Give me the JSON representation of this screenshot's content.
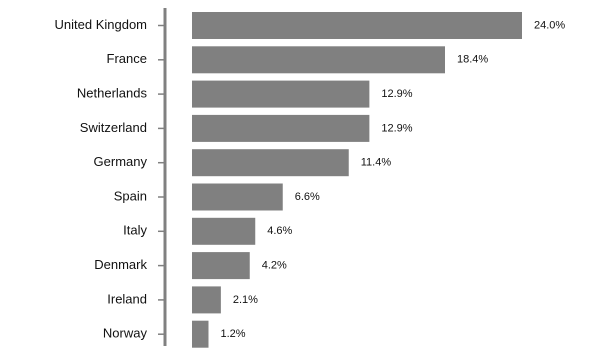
{
  "chart_data": {
    "type": "bar",
    "orientation": "horizontal",
    "categories": [
      "United Kingdom",
      "France",
      "Netherlands",
      "Switzerland",
      "Germany",
      "Spain",
      "Italy",
      "Denmark",
      "Ireland",
      "Norway"
    ],
    "values": [
      24.0,
      18.4,
      12.9,
      12.9,
      11.4,
      6.6,
      4.6,
      4.2,
      2.1,
      1.2
    ],
    "value_labels": [
      "24.0%",
      "18.4%",
      "12.9%",
      "12.9%",
      "11.4%",
      "6.6%",
      "4.6%",
      "4.2%",
      "2.1%",
      "1.2%"
    ],
    "title": "",
    "xlabel": "",
    "ylabel": "",
    "xlim": [
      0,
      24.0
    ],
    "grid": false,
    "legend": "none",
    "colors": {
      "bar": "#808080",
      "axis": "#808080",
      "text": "#111111"
    }
  }
}
